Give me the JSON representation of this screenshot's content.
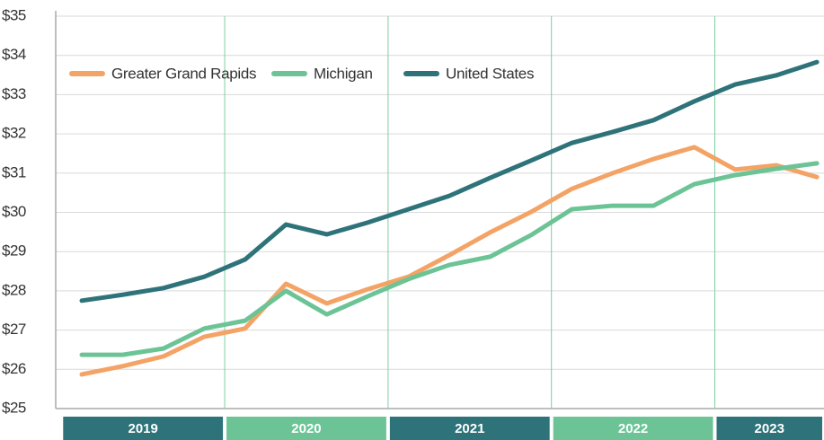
{
  "chart_data": {
    "type": "line",
    "categories": [
      null,
      null,
      null,
      null,
      null,
      null,
      null,
      null,
      null,
      null,
      null,
      null,
      null,
      null,
      null,
      null,
      null,
      null,
      null
    ],
    "x_groups": [
      {
        "label": "2019",
        "color": "#2e7379"
      },
      {
        "label": "2020",
        "color": "#6cc496"
      },
      {
        "label": "2021",
        "color": "#2e7379"
      },
      {
        "label": "2022",
        "color": "#6cc496"
      },
      {
        "label": "2023",
        "color": "#2e7379"
      }
    ],
    "series": [
      {
        "name": "Greater Grand Rapids",
        "color": "#f4a366",
        "values": [
          25.87,
          26.08,
          26.33,
          26.83,
          27.04,
          28.18,
          27.68,
          28.04,
          28.36,
          28.91,
          29.49,
          30.01,
          30.6,
          31.0,
          31.36,
          31.66,
          31.09,
          31.2,
          30.9
        ]
      },
      {
        "name": "Michigan",
        "color": "#6cc496",
        "values": [
          26.37,
          26.37,
          26.53,
          27.04,
          27.24,
          28.0,
          27.4,
          27.86,
          28.3,
          28.66,
          28.87,
          29.42,
          30.08,
          30.17,
          30.17,
          30.72,
          30.95,
          31.11,
          31.25
        ]
      },
      {
        "name": "United States",
        "color": "#2e7379",
        "values": [
          27.75,
          27.9,
          28.07,
          28.36,
          28.8,
          29.69,
          29.44,
          29.74,
          30.08,
          30.42,
          30.88,
          31.32,
          31.77,
          32.05,
          32.35,
          32.83,
          33.26,
          33.49,
          33.83
        ]
      }
    ],
    "ylim": [
      25,
      35
    ],
    "yticks": [
      {
        "value": 25,
        "label": "$25"
      },
      {
        "value": 26,
        "label": "$26"
      },
      {
        "value": 27,
        "label": "$27"
      },
      {
        "value": 28,
        "label": "$28"
      },
      {
        "value": 29,
        "label": "$29"
      },
      {
        "value": 30,
        "label": "$30"
      },
      {
        "value": 31,
        "label": "$31"
      },
      {
        "value": 32,
        "label": "$32"
      },
      {
        "value": 33,
        "label": "$33"
      },
      {
        "value": 34,
        "label": "$34"
      },
      {
        "value": 35,
        "label": "$35"
      }
    ],
    "grid": true,
    "legend": "top-left"
  }
}
